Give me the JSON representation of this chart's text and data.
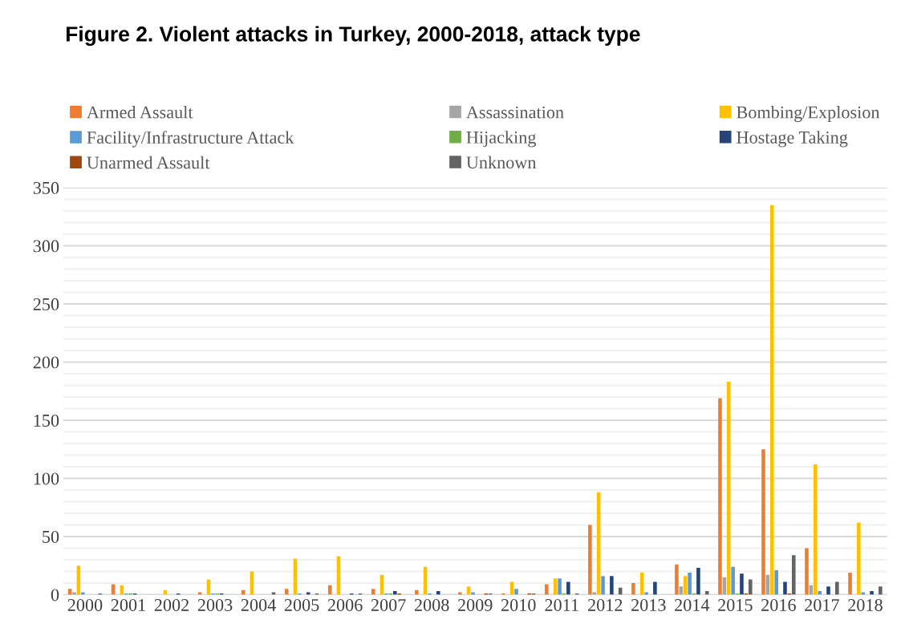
{
  "chart_data": {
    "type": "bar",
    "title": "Figure 2. Violent attacks in Turkey, 2000-2018, attack type",
    "categories": [
      "2000",
      "2001",
      "2002",
      "2003",
      "2004",
      "2005",
      "2006",
      "2007",
      "2008",
      "2009",
      "2010",
      "2011",
      "2012",
      "2013",
      "2014",
      "2015",
      "2016",
      "2017",
      "2018"
    ],
    "series": [
      {
        "name": "Armed Assault",
        "color": "#ed7d31",
        "values": [
          5,
          9,
          0,
          2,
          4,
          5,
          8,
          5,
          4,
          2,
          1,
          9,
          60,
          10,
          26,
          169,
          125,
          40,
          19
        ]
      },
      {
        "name": "Assassination",
        "color": "#a5a5a5",
        "values": [
          2,
          0,
          0,
          0,
          0,
          0,
          0,
          0,
          0,
          0,
          0,
          0,
          2,
          0,
          7,
          15,
          17,
          8,
          0
        ]
      },
      {
        "name": "Bombing/Explosion",
        "color": "#ffc000",
        "values": [
          25,
          8,
          4,
          13,
          20,
          31,
          33,
          17,
          24,
          7,
          11,
          14,
          88,
          19,
          16,
          183,
          335,
          112,
          62
        ]
      },
      {
        "name": "Facility/Infrastructure Attack",
        "color": "#5b9bd5",
        "values": [
          2,
          1,
          0,
          1,
          0,
          1,
          0,
          1,
          1,
          2,
          5,
          14,
          16,
          2,
          19,
          24,
          21,
          3,
          2
        ]
      },
      {
        "name": "Hijacking",
        "color": "#70ad47",
        "values": [
          0,
          1,
          0,
          1,
          0,
          0,
          0,
          1,
          0,
          0,
          0,
          1,
          0,
          0,
          1,
          1,
          0,
          0,
          0
        ]
      },
      {
        "name": "Hostage Taking",
        "color": "#264478",
        "values": [
          0,
          1,
          1,
          1,
          0,
          2,
          1,
          3,
          3,
          0,
          0,
          11,
          16,
          11,
          23,
          18,
          11,
          7,
          3
        ]
      },
      {
        "name": "Unarmed Assault",
        "color": "#9e480e",
        "values": [
          0,
          0,
          0,
          0,
          0,
          0,
          0,
          1,
          0,
          1,
          1,
          0,
          0,
          0,
          0,
          1,
          1,
          0,
          0
        ]
      },
      {
        "name": "Unknown",
        "color": "#636363",
        "values": [
          1,
          0,
          0,
          0,
          2,
          1,
          1,
          0,
          0,
          1,
          1,
          1,
          6,
          0,
          3,
          13,
          34,
          11,
          7
        ]
      }
    ],
    "ylim": [
      0,
      350
    ],
    "yticks": [
      0,
      50,
      100,
      150,
      200,
      250,
      300,
      350
    ],
    "grid": "y",
    "legend": "top"
  }
}
